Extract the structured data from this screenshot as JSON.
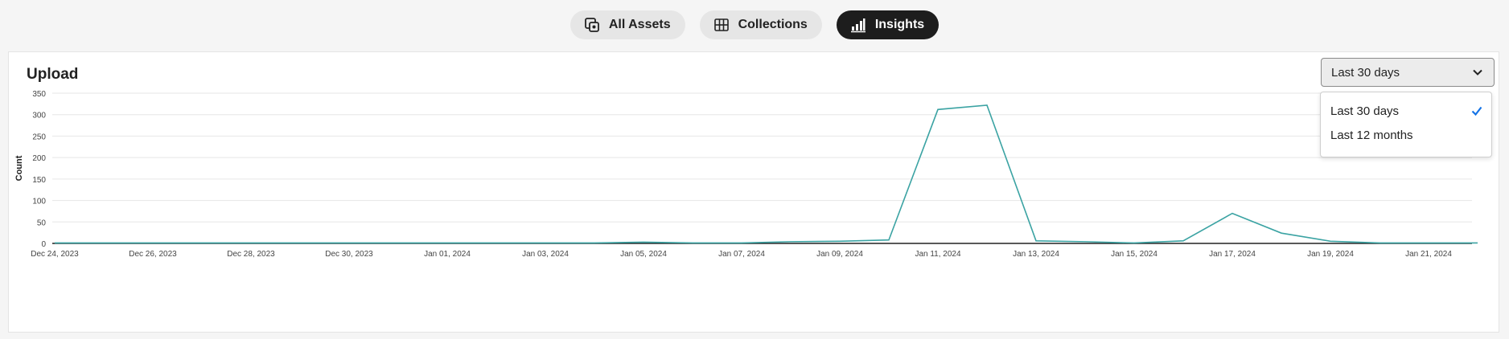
{
  "nav": {
    "tabs": [
      {
        "label": "All Assets",
        "icon": "assets-icon",
        "active": false
      },
      {
        "label": "Collections",
        "icon": "grid-icon",
        "active": false
      },
      {
        "label": "Insights",
        "icon": "bar-chart-icon",
        "active": true
      }
    ]
  },
  "card": {
    "title": "Upload",
    "range": {
      "selected": "Last 30 days",
      "options": [
        "Last 30 days",
        "Last 12 months"
      ]
    }
  },
  "colors": {
    "line": "#3ba3a3",
    "check": "#1473e6",
    "active_tab": "#1d1d1d"
  },
  "chart_data": {
    "type": "line",
    "ylabel": "Count",
    "xlabel": "",
    "ylim": [
      0,
      350
    ],
    "y_ticks": [
      0,
      50,
      100,
      150,
      200,
      250,
      300,
      350
    ],
    "x_tick_labels": [
      "Dec 24, 2023",
      "Dec 26, 2023",
      "Dec 28, 2023",
      "Dec 30, 2023",
      "Jan 01, 2024",
      "Jan 03, 2024",
      "Jan 05, 2024",
      "Jan 07, 2024",
      "Jan 09, 2024",
      "Jan 11, 2024",
      "Jan 13, 2024",
      "Jan 15, 2024",
      "Jan 17, 2024",
      "Jan 19, 2024",
      "Jan 21, 2024"
    ],
    "x": [
      "Dec 24, 2023",
      "Dec 25, 2023",
      "Dec 26, 2023",
      "Dec 27, 2023",
      "Dec 28, 2023",
      "Dec 29, 2023",
      "Dec 30, 2023",
      "Dec 31, 2023",
      "Jan 01, 2024",
      "Jan 02, 2024",
      "Jan 03, 2024",
      "Jan 04, 2024",
      "Jan 05, 2024",
      "Jan 06, 2024",
      "Jan 07, 2024",
      "Jan 08, 2024",
      "Jan 09, 2024",
      "Jan 10, 2024",
      "Jan 11, 2024",
      "Jan 12, 2024",
      "Jan 13, 2024",
      "Jan 14, 2024",
      "Jan 15, 2024",
      "Jan 16, 2024",
      "Jan 17, 2024",
      "Jan 18, 2024",
      "Jan 19, 2024",
      "Jan 20, 2024",
      "Jan 21, 2024",
      "Jan 22, 2024"
    ],
    "series": [
      {
        "values": [
          1,
          1,
          1,
          1,
          1,
          1,
          1,
          1,
          1,
          1,
          1,
          1,
          3,
          1,
          1,
          4,
          5,
          8,
          312,
          322,
          6,
          4,
          1,
          6,
          70,
          24,
          5,
          1,
          1,
          1
        ]
      }
    ],
    "grid": true
  }
}
